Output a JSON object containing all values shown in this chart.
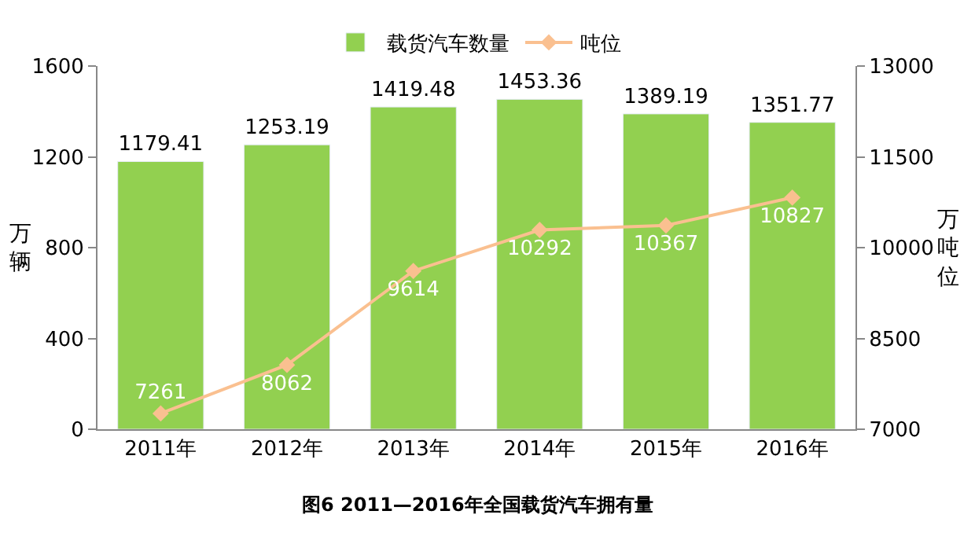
{
  "chart_data": {
    "type": "bar",
    "title": "图6 2011—2016年全国载货汽车拥有量",
    "categories": [
      "2011年",
      "2012年",
      "2013年",
      "2014年",
      "2015年",
      "2016年"
    ],
    "series": [
      {
        "name": "载货汽车数量",
        "color": "#92d050",
        "values": [
          1179.41,
          1253.19,
          1419.48,
          1453.36,
          1389.19,
          1351.77
        ]
      },
      {
        "name": "吨位",
        "type": "line",
        "axis": "y2",
        "color": "#fac090",
        "marker": "diamond",
        "values": [
          7261,
          8062,
          9614,
          10292,
          10367,
          10827
        ]
      }
    ],
    "ylabel": "万辆",
    "y2label": "万吨位",
    "ylim": [
      0,
      1600
    ],
    "yticks": [
      0,
      400,
      800,
      1200,
      1600
    ],
    "y2lim": [
      7000,
      13000
    ],
    "y2ticks": [
      7000,
      8500,
      10000,
      11500,
      13000
    ],
    "data_labels": true,
    "legend": "top"
  }
}
